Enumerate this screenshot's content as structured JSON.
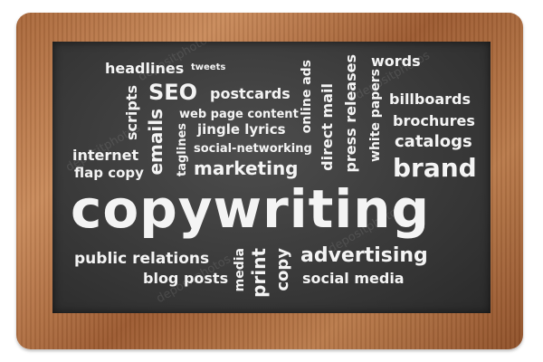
{
  "words": {
    "headlines": "headlines",
    "seo": "SEO",
    "tweets": "tweets",
    "postcards": "postcards",
    "scripts": "scripts",
    "emails": "emails",
    "web_page_content": "web page content",
    "online_ads": "online ads",
    "direct_mail": "direct mail",
    "press_releases": "press releases",
    "white_papers": "white papers",
    "words": "words",
    "billboards": "billboards",
    "brochures": "brochures",
    "catalogs": "catalogs",
    "internet": "internet",
    "flap_copy": "flap copy",
    "taglines": "taglines",
    "jingle_lyrics": "jingle lyrics",
    "social_networking": "social-networking",
    "marketing": "marketing",
    "brand": "brand",
    "copywriting": "copywriting",
    "public_relations": "public relations",
    "blog_posts": "blog posts",
    "media": "media",
    "print": "print",
    "copy": "copy",
    "advertising": "advertising",
    "social_media": "social media"
  },
  "watermark": "depositphotos"
}
